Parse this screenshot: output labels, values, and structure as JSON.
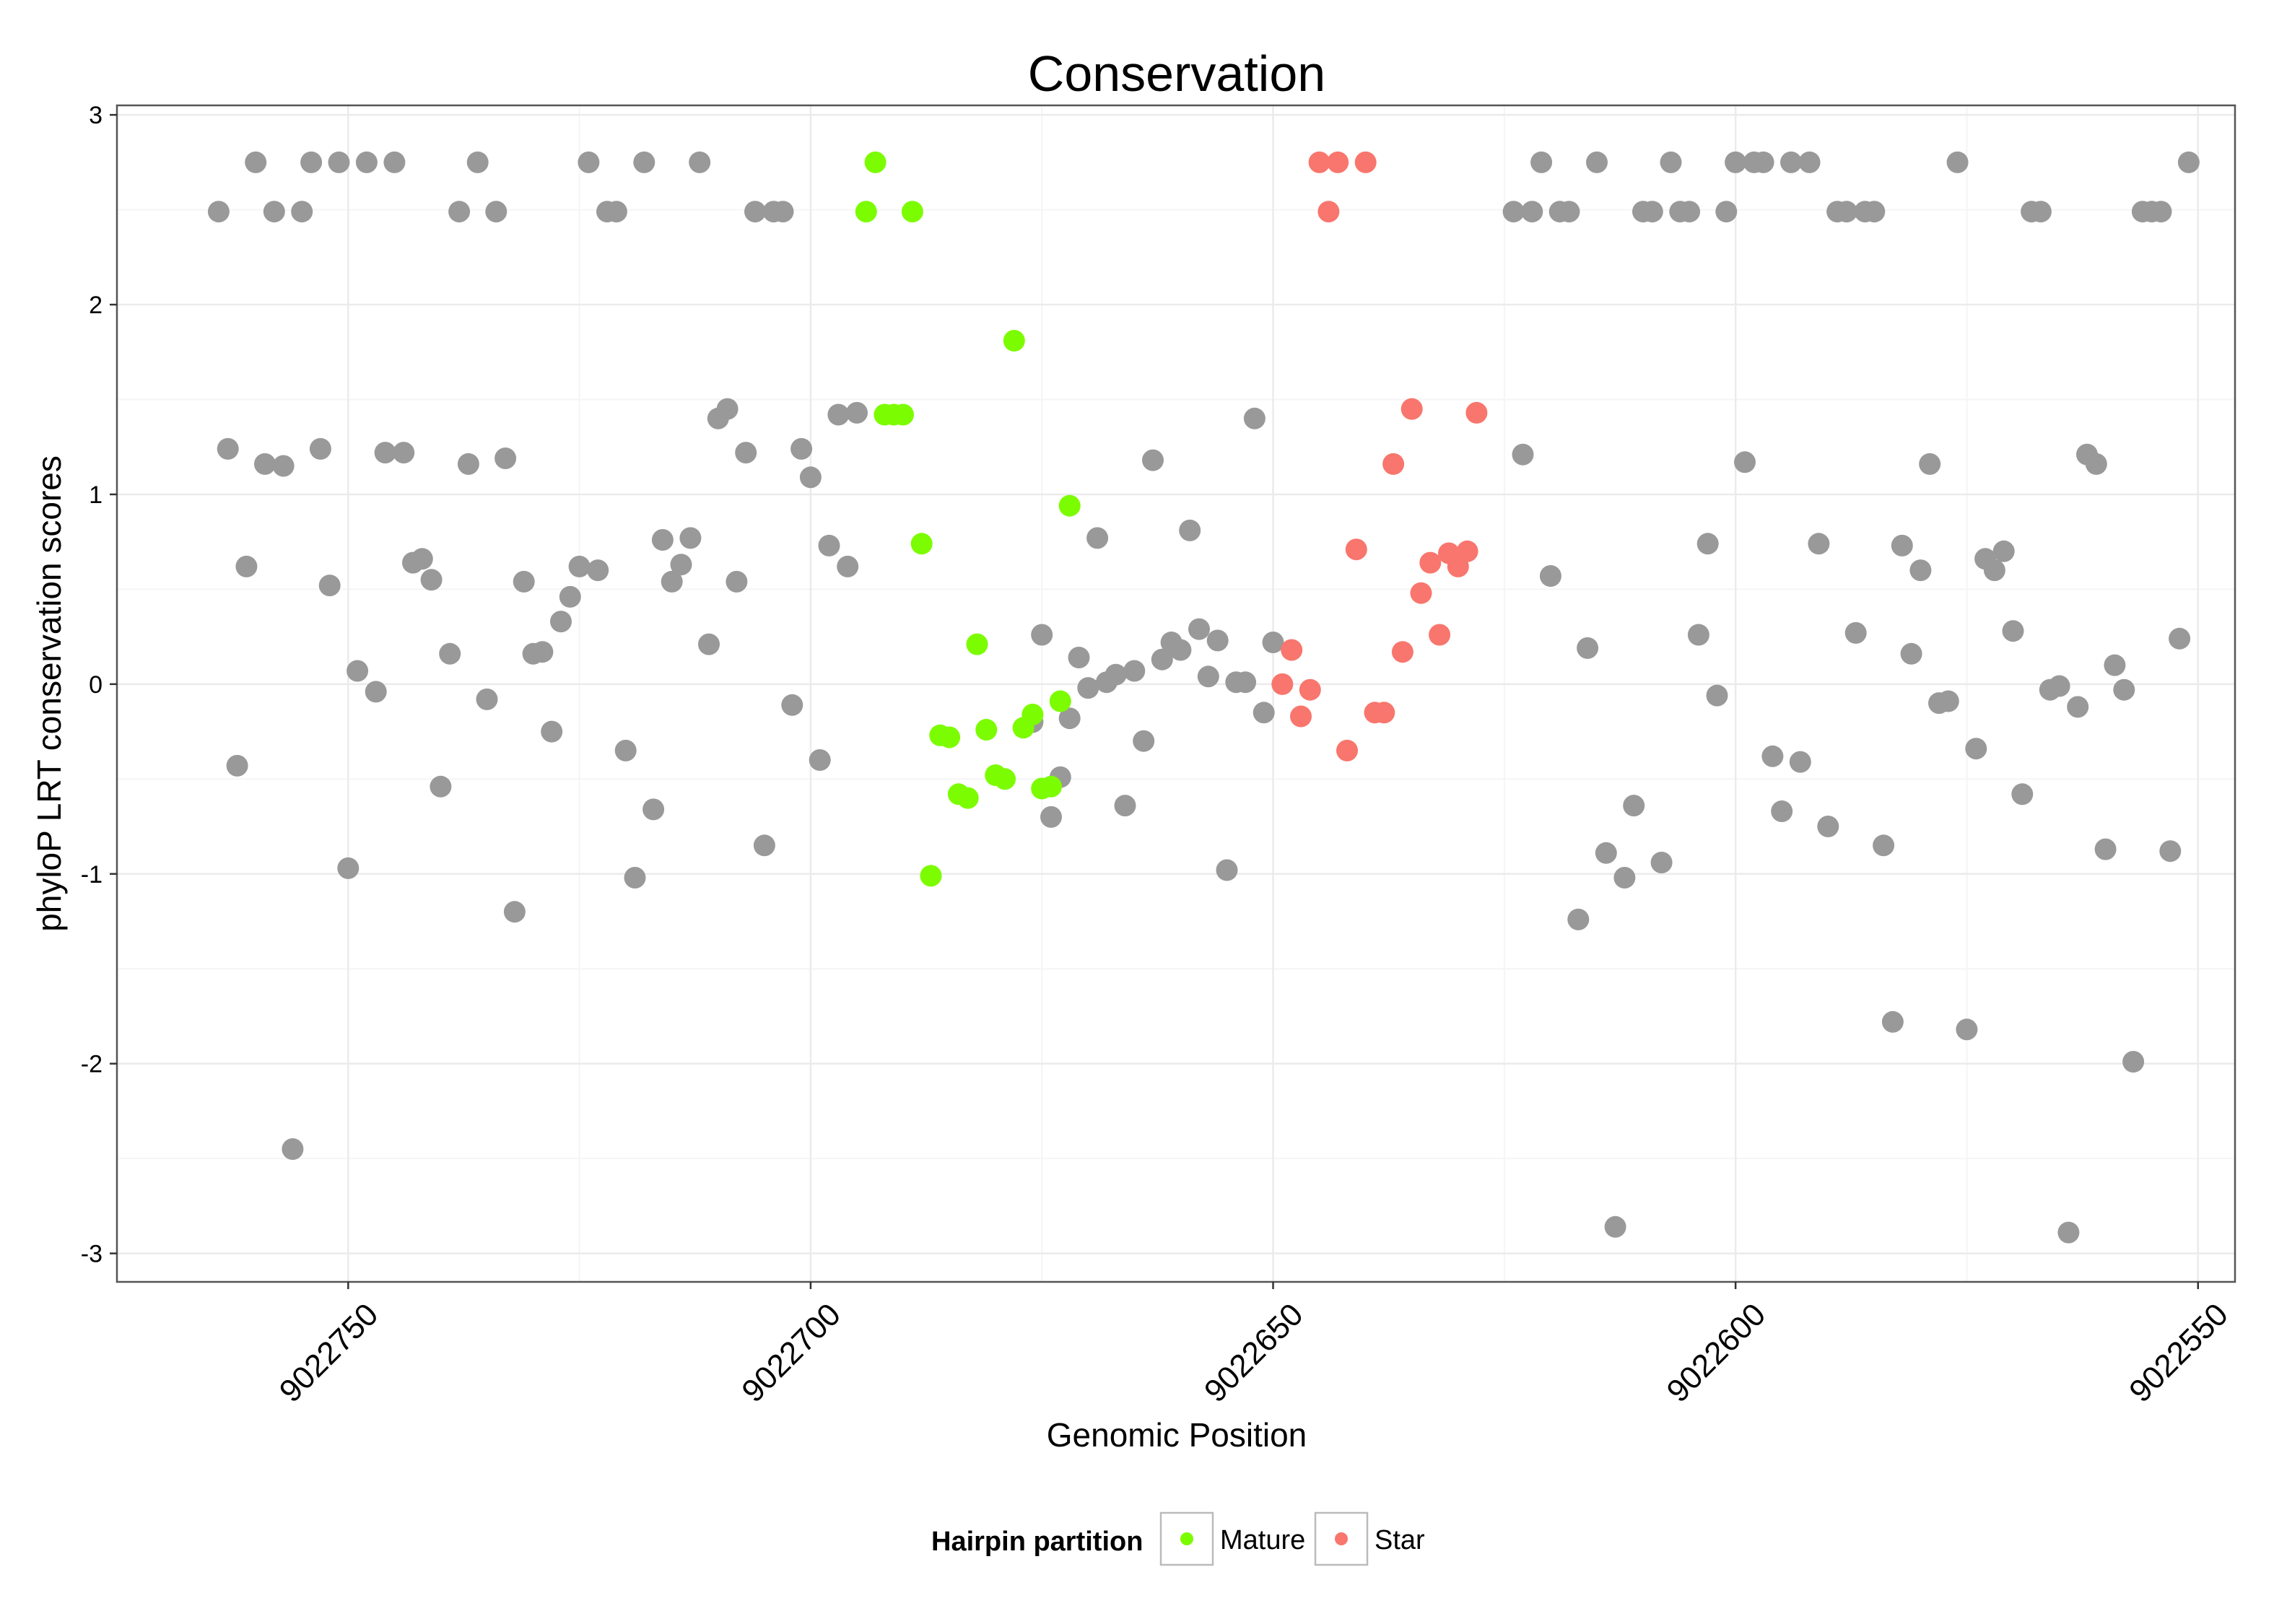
{
  "chart_data": {
    "type": "scatter",
    "title": "Conservation",
    "xlabel": "Genomic Position",
    "ylabel": "phyloP LRT conservation scores",
    "x_reversed": true,
    "xlim": [
      9022775,
      9022546
    ],
    "ylim": [
      -3.15,
      3.05
    ],
    "xticks": [
      9022750,
      9022700,
      9022650,
      9022600,
      9022550
    ],
    "xtick_labels": [
      "9022750",
      "9022700",
      "9022650",
      "9022600",
      "9022550"
    ],
    "yticks": [
      -3,
      -2,
      -1,
      0,
      1,
      2,
      3
    ],
    "ytick_labels": [
      "-3",
      "-2",
      "-1",
      "0",
      "1",
      "2",
      "3"
    ],
    "grid": true,
    "legend": {
      "title": "Hairpin partition",
      "position": "bottom",
      "entries": [
        {
          "name": "Mature",
          "color": "#7CFC00"
        },
        {
          "name": "Star",
          "color": "#F8766D"
        }
      ]
    },
    "colors": {
      "Other": "#999999",
      "Mature": "#7CFC00",
      "Star": "#F8766D"
    },
    "series": [
      {
        "name": "Other",
        "points": [
          [
            9022764,
            2.49
          ],
          [
            9022763,
            1.24
          ],
          [
            9022762,
            -0.43
          ],
          [
            9022761,
            0.62
          ],
          [
            9022760,
            2.75
          ],
          [
            9022759,
            1.16
          ],
          [
            9022758,
            2.49
          ],
          [
            9022757,
            1.15
          ],
          [
            9022756,
            -2.45
          ],
          [
            9022755,
            2.49
          ],
          [
            9022754,
            2.75
          ],
          [
            9022753,
            1.24
          ],
          [
            9022752,
            0.52
          ],
          [
            9022751,
            2.75
          ],
          [
            9022750,
            -0.97
          ],
          [
            9022749,
            0.07
          ],
          [
            9022748,
            2.75
          ],
          [
            9022747,
            -0.04
          ],
          [
            9022746,
            1.22
          ],
          [
            9022745,
            2.75
          ],
          [
            9022744,
            1.22
          ],
          [
            9022743,
            0.64
          ],
          [
            9022742,
            0.66
          ],
          [
            9022741,
            0.55
          ],
          [
            9022740,
            -0.54
          ],
          [
            9022739,
            0.16
          ],
          [
            9022738,
            2.49
          ],
          [
            9022737,
            1.16
          ],
          [
            9022736,
            2.75
          ],
          [
            9022735,
            -0.08
          ],
          [
            9022734,
            2.49
          ],
          [
            9022733,
            1.19
          ],
          [
            9022732,
            -1.2
          ],
          [
            9022731,
            0.54
          ],
          [
            9022730,
            0.16
          ],
          [
            9022729,
            0.17
          ],
          [
            9022728,
            -0.25
          ],
          [
            9022727,
            0.33
          ],
          [
            9022726,
            0.46
          ],
          [
            9022725,
            0.62
          ],
          [
            9022724,
            2.75
          ],
          [
            9022723,
            0.6
          ],
          [
            9022722,
            2.49
          ],
          [
            9022721,
            2.49
          ],
          [
            9022720,
            -0.35
          ],
          [
            9022719,
            -1.02
          ],
          [
            9022718,
            2.75
          ],
          [
            9022717,
            -0.66
          ],
          [
            9022716,
            0.76
          ],
          [
            9022715,
            0.54
          ],
          [
            9022714,
            0.63
          ],
          [
            9022713,
            0.77
          ],
          [
            9022712,
            2.75
          ],
          [
            9022711,
            0.21
          ],
          [
            9022710,
            1.4
          ],
          [
            9022709,
            1.45
          ],
          [
            9022708,
            0.54
          ],
          [
            9022707,
            1.22
          ],
          [
            9022706,
            2.49
          ],
          [
            9022705,
            -0.85
          ],
          [
            9022704,
            2.49
          ],
          [
            9022703,
            2.49
          ],
          [
            9022702,
            -0.11
          ],
          [
            9022701,
            1.24
          ],
          [
            9022700,
            1.09
          ],
          [
            9022699,
            -0.4
          ],
          [
            9022698,
            0.73
          ],
          [
            9022697,
            1.42
          ],
          [
            9022696,
            0.62
          ],
          [
            9022695,
            1.43
          ],
          [
            9022676,
            -0.2
          ],
          [
            9022675,
            0.26
          ],
          [
            9022674,
            -0.7
          ],
          [
            9022673,
            -0.49
          ],
          [
            9022672,
            -0.18
          ],
          [
            9022671,
            0.14
          ],
          [
            9022670,
            -0.02
          ],
          [
            9022669,
            0.77
          ],
          [
            9022668,
            0.01
          ],
          [
            9022667,
            0.05
          ],
          [
            9022666,
            -0.64
          ],
          [
            9022665,
            0.07
          ],
          [
            9022664,
            -0.3
          ],
          [
            9022663,
            1.18
          ],
          [
            9022662,
            0.13
          ],
          [
            9022661,
            0.22
          ],
          [
            9022660,
            0.18
          ],
          [
            9022659,
            0.81
          ],
          [
            9022658,
            0.29
          ],
          [
            9022657,
            0.04
          ],
          [
            9022656,
            0.23
          ],
          [
            9022655,
            -0.98
          ],
          [
            9022654,
            0.01
          ],
          [
            9022653,
            0.01
          ],
          [
            9022652,
            1.4
          ],
          [
            9022651,
            -0.15
          ],
          [
            9022650,
            0.22
          ],
          [
            9022624,
            2.49
          ],
          [
            9022623,
            1.21
          ],
          [
            9022622,
            2.49
          ],
          [
            9022621,
            2.75
          ],
          [
            9022620,
            0.57
          ],
          [
            9022619,
            2.49
          ],
          [
            9022618,
            2.49
          ],
          [
            9022617,
            -1.24
          ],
          [
            9022616,
            0.19
          ],
          [
            9022615,
            2.75
          ],
          [
            9022614,
            -0.89
          ],
          [
            9022613,
            -2.86
          ],
          [
            9022612,
            -1.02
          ],
          [
            9022611,
            -0.64
          ],
          [
            9022610,
            2.49
          ],
          [
            9022609,
            2.49
          ],
          [
            9022608,
            -0.94
          ],
          [
            9022607,
            2.75
          ],
          [
            9022606,
            2.49
          ],
          [
            9022605,
            2.49
          ],
          [
            9022604,
            0.26
          ],
          [
            9022603,
            0.74
          ],
          [
            9022602,
            -0.06
          ],
          [
            9022601,
            2.49
          ],
          [
            9022600,
            2.75
          ],
          [
            9022599,
            1.17
          ],
          [
            9022598,
            2.75
          ],
          [
            9022597,
            2.75
          ],
          [
            9022596,
            -0.38
          ],
          [
            9022595,
            -0.67
          ],
          [
            9022594,
            2.75
          ],
          [
            9022593,
            -0.41
          ],
          [
            9022592,
            2.75
          ],
          [
            9022591,
            0.74
          ],
          [
            9022590,
            -0.75
          ],
          [
            9022589,
            2.49
          ],
          [
            9022588,
            2.49
          ],
          [
            9022587,
            0.27
          ],
          [
            9022586,
            2.49
          ],
          [
            9022585,
            2.49
          ],
          [
            9022584,
            -0.85
          ],
          [
            9022583,
            -1.78
          ],
          [
            9022582,
            0.73
          ],
          [
            9022581,
            0.16
          ],
          [
            9022580,
            0.6
          ],
          [
            9022579,
            1.16
          ],
          [
            9022578,
            -0.1
          ],
          [
            9022577,
            -0.09
          ],
          [
            9022576,
            2.75
          ],
          [
            9022575,
            -1.82
          ],
          [
            9022574,
            -0.34
          ],
          [
            9022573,
            0.66
          ],
          [
            9022572,
            0.6
          ],
          [
            9022571,
            0.7
          ],
          [
            9022570,
            0.28
          ],
          [
            9022569,
            -0.58
          ],
          [
            9022568,
            2.49
          ],
          [
            9022567,
            2.49
          ],
          [
            9022566,
            -0.03
          ],
          [
            9022565,
            -0.01
          ],
          [
            9022564,
            -2.89
          ],
          [
            9022563,
            -0.12
          ],
          [
            9022562,
            1.21
          ],
          [
            9022561,
            1.16
          ],
          [
            9022560,
            -0.87
          ],
          [
            9022559,
            0.1
          ],
          [
            9022558,
            -0.03
          ],
          [
            9022557,
            -1.99
          ],
          [
            9022556,
            2.49
          ],
          [
            9022555,
            2.49
          ],
          [
            9022554,
            2.49
          ],
          [
            9022553,
            -0.88
          ],
          [
            9022552,
            0.24
          ],
          [
            9022551,
            2.75
          ]
        ]
      },
      {
        "name": "Mature",
        "points": [
          [
            9022694,
            2.49
          ],
          [
            9022693,
            2.75
          ],
          [
            9022692,
            1.42
          ],
          [
            9022691,
            1.42
          ],
          [
            9022690,
            1.42
          ],
          [
            9022689,
            2.49
          ],
          [
            9022688,
            0.74
          ],
          [
            9022687,
            -1.01
          ],
          [
            9022686,
            -0.27
          ],
          [
            9022685,
            -0.28
          ],
          [
            9022684,
            -0.58
          ],
          [
            9022683,
            -0.6
          ],
          [
            9022682,
            0.21
          ],
          [
            9022681,
            -0.24
          ],
          [
            9022680,
            -0.48
          ],
          [
            9022679,
            -0.5
          ],
          [
            9022678,
            1.81
          ],
          [
            9022677,
            -0.23
          ],
          [
            9022676,
            -0.16
          ],
          [
            9022675,
            -0.55
          ],
          [
            9022674,
            -0.54
          ],
          [
            9022673,
            -0.09
          ],
          [
            9022672,
            0.94
          ]
        ]
      },
      {
        "name": "Star",
        "points": [
          [
            9022649,
            -0.0
          ],
          [
            9022648,
            0.18
          ],
          [
            9022647,
            -0.17
          ],
          [
            9022646,
            -0.03
          ],
          [
            9022645,
            2.75
          ],
          [
            9022644,
            2.49
          ],
          [
            9022643,
            2.75
          ],
          [
            9022642,
            -0.35
          ],
          [
            9022641,
            0.71
          ],
          [
            9022640,
            2.75
          ],
          [
            9022639,
            -0.15
          ],
          [
            9022638,
            -0.15
          ],
          [
            9022637,
            1.16
          ],
          [
            9022636,
            0.17
          ],
          [
            9022635,
            1.45
          ],
          [
            9022634,
            0.48
          ],
          [
            9022633,
            0.64
          ],
          [
            9022632,
            0.26
          ],
          [
            9022631,
            0.69
          ],
          [
            9022630,
            0.62
          ],
          [
            9022629,
            0.7
          ],
          [
            9022628,
            1.43
          ]
        ]
      }
    ]
  }
}
